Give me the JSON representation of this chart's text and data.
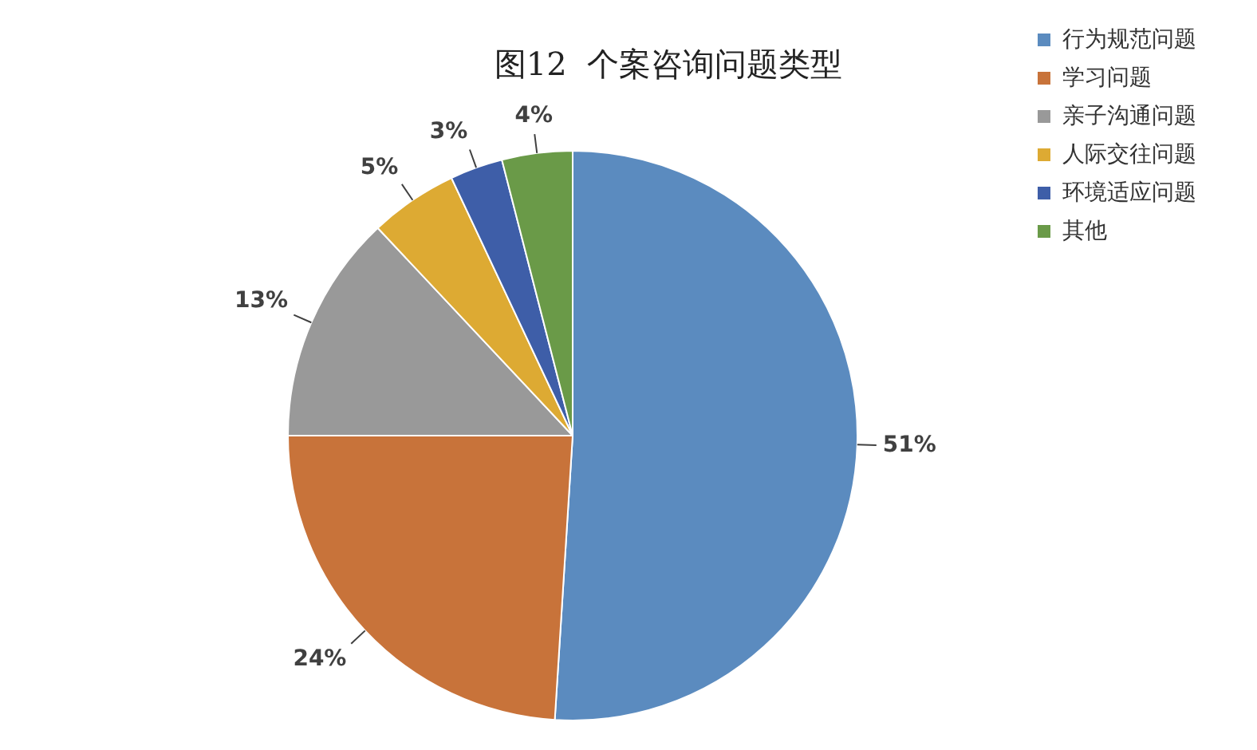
{
  "chart_data": {
    "type": "pie",
    "title": "图12  个案咨询问题类型",
    "categories": [
      "行为规范问题",
      "学习问题",
      "亲子沟通问题",
      "人际交往问题",
      "环境适应问题",
      "其他"
    ],
    "values": [
      51,
      24,
      13,
      5,
      3,
      4
    ],
    "colors": [
      "#5b8bbf",
      "#c8733a",
      "#999999",
      "#ddaa33",
      "#3e5ea8",
      "#6a9a48"
    ],
    "value_labels": [
      "51%",
      "24%",
      "13%",
      "5%",
      "3%",
      "4%"
    ],
    "legend": "top right"
  }
}
